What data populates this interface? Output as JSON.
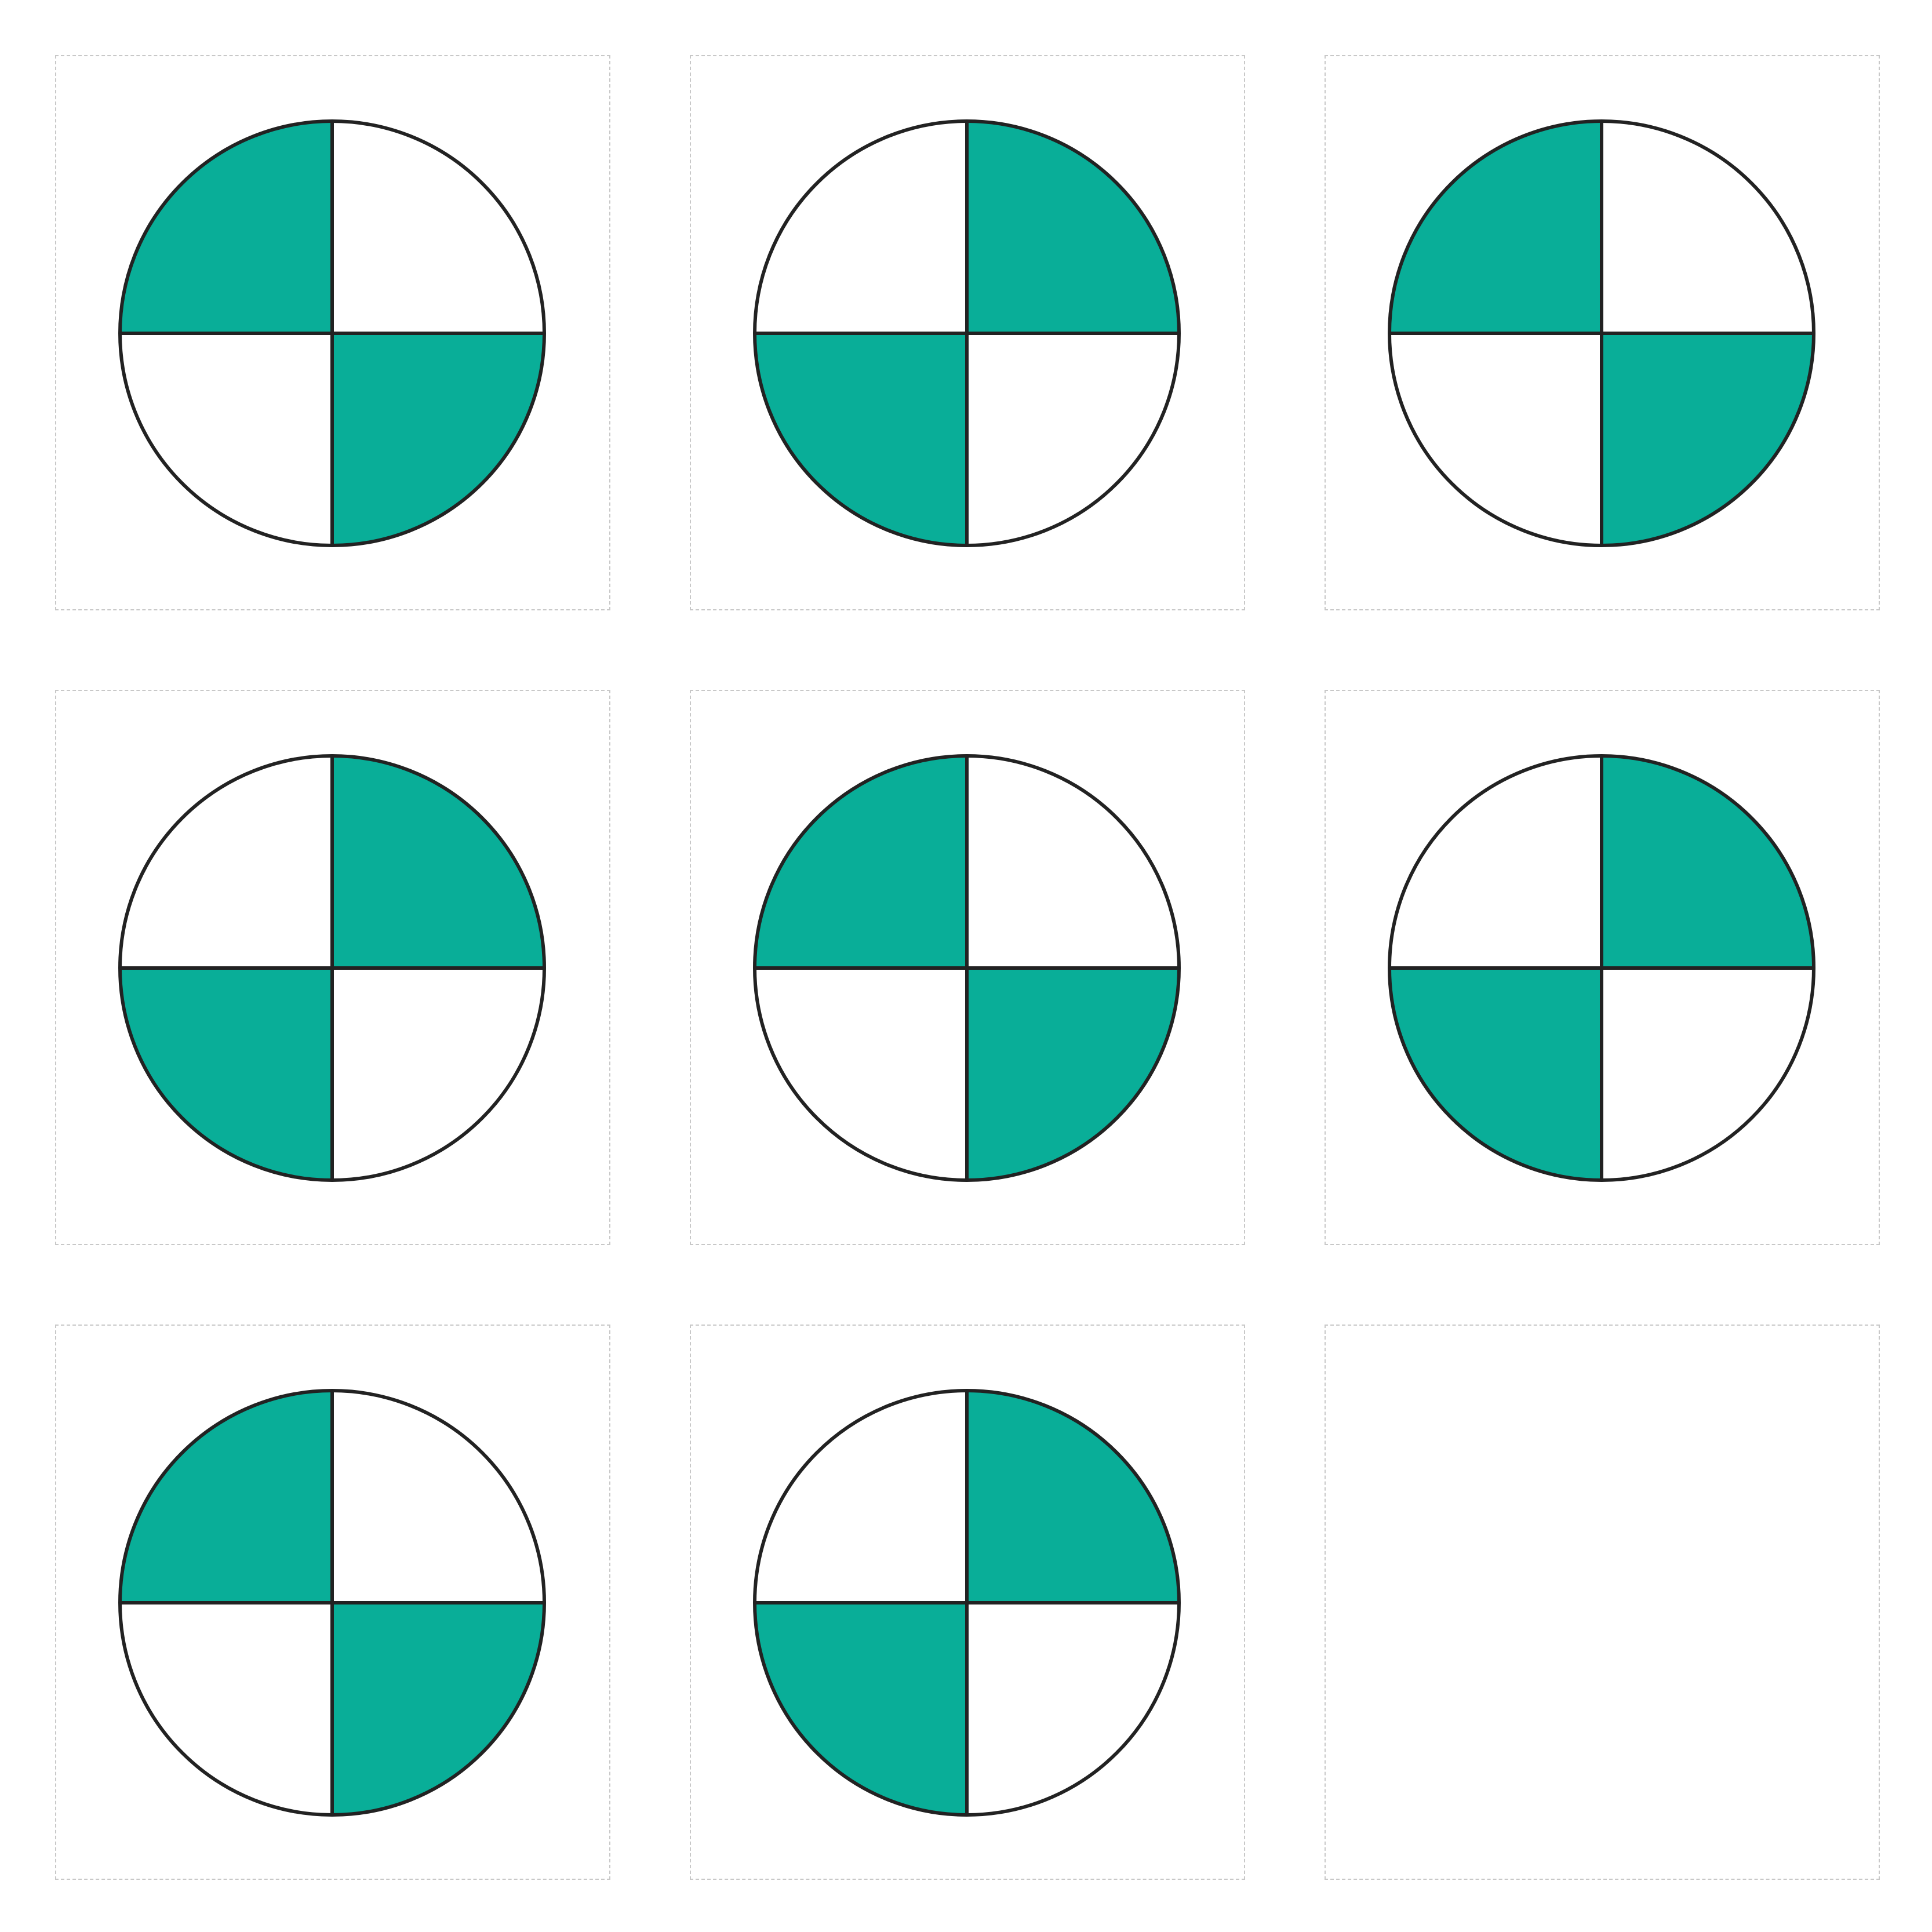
{
  "colors": {
    "fill": "#09AE98",
    "empty": "#ffffff",
    "stroke": "#222222",
    "cell_border": "#c8c8c8"
  },
  "grid": {
    "rows": 3,
    "columns": 3
  },
  "circles": [
    {
      "label": "circle-1",
      "shaded_quadrants": [
        "top-left",
        "bottom-right"
      ]
    },
    {
      "label": "circle-2",
      "shaded_quadrants": [
        "top-right",
        "bottom-left"
      ]
    },
    {
      "label": "circle-3",
      "shaded_quadrants": [
        "top-left",
        "bottom-right"
      ]
    },
    {
      "label": "circle-4",
      "shaded_quadrants": [
        "top-right",
        "bottom-left"
      ]
    },
    {
      "label": "circle-5",
      "shaded_quadrants": [
        "top-left",
        "bottom-right"
      ]
    },
    {
      "label": "circle-6",
      "shaded_quadrants": [
        "top-right",
        "bottom-left"
      ]
    },
    {
      "label": "circle-7",
      "shaded_quadrants": [
        "top-left",
        "bottom-right"
      ]
    },
    {
      "label": "circle-8",
      "shaded_quadrants": [
        "top-right",
        "bottom-left"
      ]
    },
    {
      "label": "empty-cell",
      "shaded_quadrants": [],
      "empty": true
    }
  ]
}
